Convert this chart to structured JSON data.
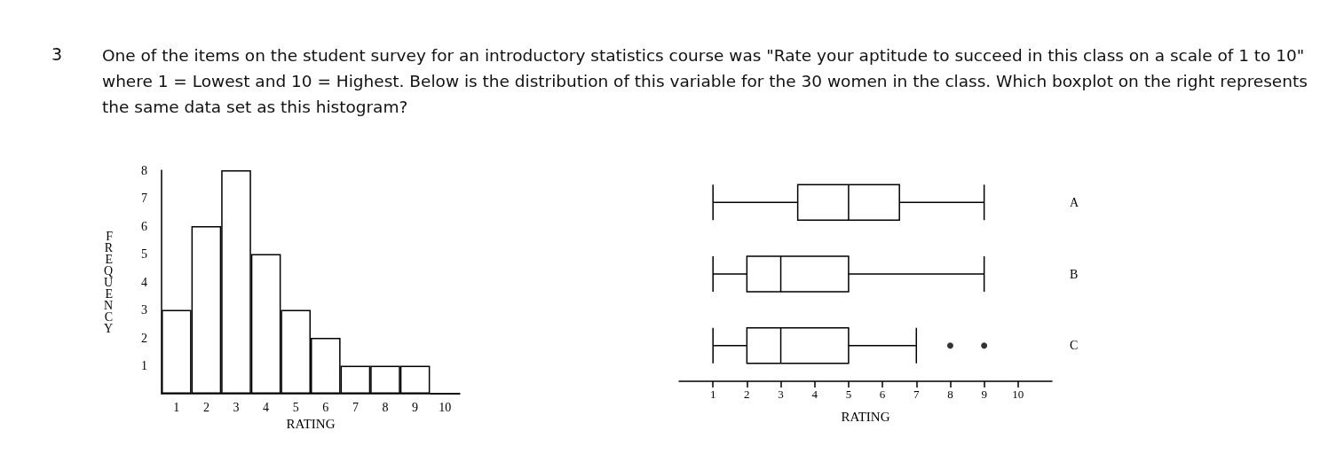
{
  "chart_data": [
    {
      "type": "bar",
      "title": "One of the items on the student survey for an introductory statistics course was \"Rate your aptitude to succeed in this class on a scale of 1 to 10\" where 1 = Lowest and 10 = Highest.  Below is the distribution of this variable for the 30 women in the class. Which boxplot on the right represents the same data set as this histogram?",
      "annotations": [
        "3"
      ],
      "categories": [
        "1",
        "2",
        "3",
        "4",
        "5",
        "6",
        "7",
        "8",
        "9",
        "10"
      ],
      "values": [
        3,
        6,
        8,
        5,
        3,
        2,
        1,
        1,
        1,
        0
      ],
      "color": "#ffffff",
      "xlabel": "RATING",
      "ylabel": "FREQUENCY",
      "ylim": [
        0,
        8
      ],
      "yticks": [
        1,
        2,
        3,
        4,
        5,
        6,
        7,
        8
      ],
      "grid": false
    },
    {
      "type": "box",
      "orientation": "horizontal",
      "categories": [
        "A",
        "B",
        "C"
      ],
      "boxes": [
        {
          "low": 1,
          "q1": 3.5,
          "median": 5,
          "q3": 6.5,
          "high": 9
        },
        {
          "low": 1,
          "q1": 2,
          "median": 3,
          "q3": 5,
          "high": 9
        },
        {
          "low": 1,
          "q1": 2,
          "median": 3,
          "q3": 5,
          "high": 7,
          "outliers": [
            8,
            9
          ]
        }
      ],
      "color": "#000000",
      "xlabel": "RATING",
      "xlim": [
        0,
        11
      ],
      "xticks": [
        1,
        2,
        3,
        4,
        5,
        6,
        7,
        8,
        9,
        10
      ],
      "grid": false
    }
  ]
}
